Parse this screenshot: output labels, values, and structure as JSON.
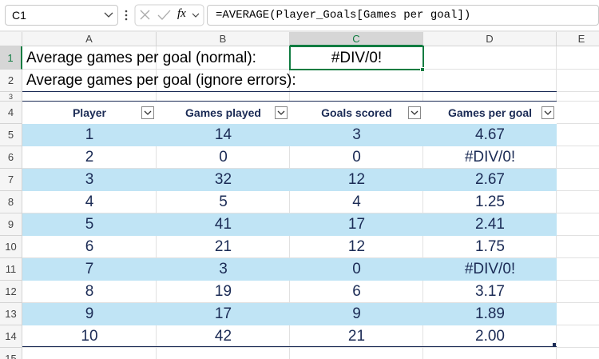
{
  "formula_bar": {
    "name_box": "C1",
    "fx": "fx",
    "formula": "=AVERAGE(Player_Goals[Games per goal])"
  },
  "column_headers": [
    "A",
    "B",
    "C",
    "D",
    "E"
  ],
  "row_headers": [
    "1",
    "2",
    "3",
    "4",
    "5",
    "6",
    "7",
    "8",
    "9",
    "10",
    "11",
    "12",
    "13",
    "14",
    "15"
  ],
  "cells": {
    "A1": "Average games per goal (normal):",
    "C1": "#DIV/0!",
    "A2": "Average games per goal (ignore errors):"
  },
  "table": {
    "headers": [
      "Player",
      "Games played",
      "Goals scored",
      "Games per goal"
    ],
    "rows": [
      [
        "1",
        "14",
        "3",
        "4.67"
      ],
      [
        "2",
        "0",
        "0",
        "#DIV/0!"
      ],
      [
        "3",
        "32",
        "12",
        "2.67"
      ],
      [
        "4",
        "5",
        "4",
        "1.25"
      ],
      [
        "5",
        "41",
        "17",
        "2.41"
      ],
      [
        "6",
        "21",
        "12",
        "1.75"
      ],
      [
        "7",
        "3",
        "0",
        "#DIV/0!"
      ],
      [
        "8",
        "19",
        "6",
        "3.17"
      ],
      [
        "9",
        "17",
        "9",
        "1.89"
      ],
      [
        "10",
        "42",
        "21",
        "2.00"
      ]
    ]
  }
}
